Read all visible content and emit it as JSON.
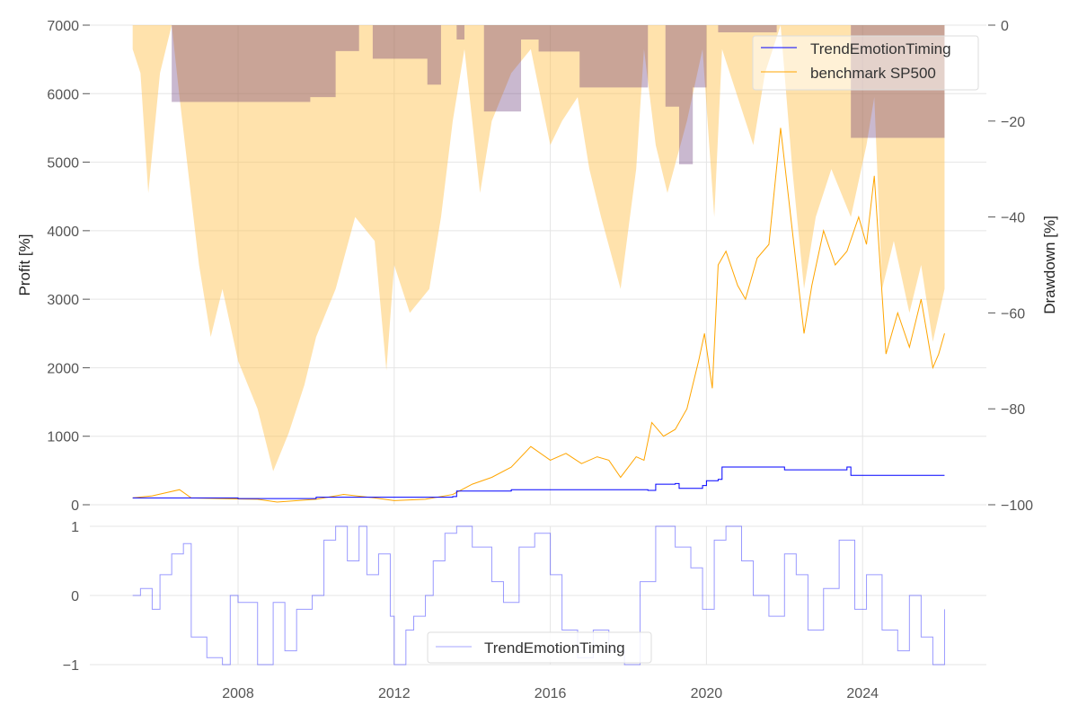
{
  "chart_data": [
    {
      "type": "line",
      "panel": "main",
      "xlabel": "",
      "ylabel": "Profit [%]",
      "ylabel_right": "Drawdown [%]",
      "ylim": [
        0,
        7000
      ],
      "ylim_right": [
        -100,
        0
      ],
      "xlim": [
        2004.4,
        2027.1
      ],
      "yticks": [
        0,
        1000,
        2000,
        3000,
        4000,
        5000,
        6000,
        7000
      ],
      "yticks_right": [
        "0",
        "−20",
        "−40",
        "−60",
        "−80",
        "−100"
      ],
      "yticks_right_values": [
        0,
        -20,
        -40,
        -60,
        -80,
        -100
      ],
      "legend": {
        "placement": "top-right",
        "entries": [
          "TrendEmotionTiming",
          "benchmark SP500"
        ]
      },
      "series": [
        {
          "name": "TrendEmotionTiming",
          "color": "#0000ff",
          "axis": "left",
          "x": [
            2005.3,
            2008,
            2010,
            2013.5,
            2013.6,
            2015,
            2018.5,
            2018.7,
            2019.2,
            2019.3,
            2019.9,
            2020.0,
            2020.3,
            2020.4,
            2021.9,
            2022.0,
            2023.6,
            2023.7,
            2026.1
          ],
          "y": [
            100,
            90,
            110,
            120,
            200,
            220,
            210,
            300,
            310,
            240,
            280,
            350,
            370,
            550,
            550,
            510,
            550,
            430,
            430
          ]
        },
        {
          "name": "benchmark SP500",
          "color": "#ffa500",
          "axis": "left",
          "x": [
            2005.3,
            2005.8,
            2006.5,
            2006.8,
            2007.5,
            2008.5,
            2009.0,
            2010.0,
            2010.7,
            2011.5,
            2012.0,
            2012.8,
            2013.5,
            2014.0,
            2014.5,
            2015.0,
            2015.5,
            2016.0,
            2016.4,
            2016.8,
            2017.2,
            2017.5,
            2017.8,
            2018.2,
            2018.4,
            2018.6,
            2018.9,
            2019.2,
            2019.5,
            2019.8,
            2019.95,
            2020.15,
            2020.3,
            2020.5,
            2020.8,
            2021.0,
            2021.3,
            2021.6,
            2021.9,
            2022.1,
            2022.3,
            2022.5,
            2022.7,
            2023.0,
            2023.3,
            2023.6,
            2023.9,
            2024.1,
            2024.3,
            2024.45,
            2024.6,
            2024.9,
            2025.2,
            2025.5,
            2025.8,
            2025.95,
            2026.1
          ],
          "y": [
            100,
            130,
            220,
            100,
            90,
            80,
            40,
            80,
            150,
            100,
            60,
            80,
            150,
            300,
            400,
            550,
            850,
            650,
            750,
            600,
            700,
            650,
            400,
            700,
            650,
            1200,
            1000,
            1100,
            1400,
            2100,
            2500,
            1700,
            3500,
            3700,
            3200,
            3000,
            3600,
            3800,
            5500,
            4500,
            3500,
            2500,
            3200,
            4000,
            3500,
            3700,
            4200,
            3800,
            4800,
            3500,
            2200,
            2800,
            2300,
            3000,
            2000,
            2200,
            2500
          ]
        }
      ],
      "drawdown_series": [
        {
          "name": "TrendEmotionTiming drawdown",
          "color": "#0000ff",
          "x": [
            2005.3,
            2006.3,
            2006.3,
            2009.85,
            2009.85,
            2010.5,
            2010.5,
            2011.1,
            2011.1,
            2011.45,
            2011.45,
            2012.85,
            2012.85,
            2013.2,
            2013.2,
            2013.6,
            2013.6,
            2013.8,
            2013.8,
            2014.3,
            2014.3,
            2015.25,
            2015.25,
            2015.7,
            2015.7,
            2016.75,
            2016.75,
            2018.5,
            2018.5,
            2018.95,
            2018.95,
            2019.3,
            2019.3,
            2019.65,
            2019.65,
            2020.0,
            2020.0,
            2020.3,
            2020.3,
            2021.8,
            2021.8,
            2023.7,
            2023.7,
            2026.1
          ],
          "y": [
            0,
            0,
            -16,
            -16,
            -15,
            -15,
            -5.4,
            -5.4,
            0,
            0,
            -7,
            -7,
            -12.4,
            -12.4,
            0,
            0,
            -3,
            -3,
            0,
            0,
            -18,
            -18,
            -3,
            -3,
            -5.5,
            -5.5,
            -13,
            -13,
            0,
            0,
            -17,
            -17,
            -29,
            -29,
            -13,
            -13,
            0,
            0,
            -1.5,
            -1.5,
            0,
            0,
            -23.5,
            -23.5
          ]
        },
        {
          "name": "benchmark SP500 drawdown",
          "color": "#ffa500",
          "x": [
            2005.3,
            2005.5,
            2005.7,
            2006.0,
            2006.3,
            2006.5,
            2007.0,
            2007.3,
            2007.6,
            2008.0,
            2008.5,
            2008.9,
            2009.3,
            2009.7,
            2010.0,
            2010.5,
            2011.0,
            2011.5,
            2011.8,
            2012.0,
            2012.4,
            2012.9,
            2013.2,
            2013.5,
            2013.8,
            2014.2,
            2014.5,
            2015.0,
            2015.5,
            2016.0,
            2016.3,
            2016.7,
            2017.0,
            2017.3,
            2017.8,
            2018.2,
            2018.4,
            2018.7,
            2019.0,
            2019.5,
            2019.9,
            2020.2,
            2020.4,
            2020.8,
            2021.2,
            2021.5,
            2021.9,
            2022.2,
            2022.5,
            2022.8,
            2023.2,
            2023.7,
            2024.1,
            2024.3,
            2024.5,
            2024.8,
            2025.2,
            2025.5,
            2025.8,
            2026.1
          ],
          "y": [
            -5,
            -10,
            -35,
            -10,
            0,
            -15,
            -50,
            -65,
            -55,
            -70,
            -80,
            -93,
            -85,
            -75,
            -65,
            -55,
            -40,
            -45,
            -72,
            -50,
            -60,
            -55,
            -40,
            -20,
            -5,
            -35,
            -20,
            -10,
            -5,
            -25,
            -20,
            -15,
            -30,
            -40,
            -55,
            -30,
            -5,
            -25,
            -35,
            -20,
            -5,
            -40,
            -5,
            -15,
            -25,
            -10,
            0,
            -30,
            -55,
            -40,
            -30,
            -40,
            -25,
            -15,
            -55,
            -45,
            -60,
            -50,
            -66,
            -55
          ]
        }
      ]
    },
    {
      "type": "line",
      "panel": "signal",
      "xlabel": "",
      "ylabel": "",
      "ylim": [
        -1,
        1
      ],
      "yticks": [
        "−1",
        "0",
        "1"
      ],
      "yticks_values": [
        -1,
        0,
        1
      ],
      "xticks": [
        "2008",
        "2012",
        "2016",
        "2020",
        "2024"
      ],
      "xticks_values": [
        2008,
        2012,
        2016,
        2020,
        2024
      ],
      "legend": {
        "placement": "bottom-center",
        "entries": [
          "TrendEmotionTiming"
        ]
      },
      "series": [
        {
          "name": "TrendEmotionTiming",
          "color": "#0000ff",
          "x": [
            2005.3,
            2005.5,
            2005.8,
            2006.0,
            2006.3,
            2006.6,
            2006.8,
            2007.2,
            2007.6,
            2007.8,
            2008.0,
            2008.5,
            2008.9,
            2009.2,
            2009.5,
            2009.9,
            2010.2,
            2010.5,
            2010.8,
            2011.1,
            2011.3,
            2011.6,
            2011.9,
            2012.0,
            2012.3,
            2012.5,
            2012.8,
            2013.0,
            2013.3,
            2013.6,
            2014.0,
            2014.5,
            2014.8,
            2015.2,
            2015.6,
            2016.0,
            2016.3,
            2016.7,
            2017.1,
            2017.5,
            2017.9,
            2018.3,
            2018.7,
            2019.2,
            2019.6,
            2019.9,
            2020.2,
            2020.5,
            2020.9,
            2021.2,
            2021.6,
            2022.0,
            2022.3,
            2022.6,
            2023.0,
            2023.4,
            2023.8,
            2024.1,
            2024.5,
            2024.9,
            2025.2,
            2025.5,
            2025.8,
            2026.1
          ],
          "y": [
            0,
            0.1,
            -0.2,
            0.3,
            0.6,
            0.75,
            -0.6,
            -0.9,
            -1,
            0,
            -0.1,
            -1,
            -0.1,
            -0.8,
            -0.2,
            0,
            0.8,
            1,
            0.5,
            1,
            0.3,
            0.6,
            -0.3,
            -1,
            -0.5,
            -0.3,
            0,
            0.5,
            0.9,
            1,
            0.7,
            0.2,
            -0.1,
            0.7,
            0.9,
            0.3,
            -0.5,
            -0.9,
            -0.5,
            -0.8,
            -1,
            0.2,
            1,
            0.7,
            0.4,
            -0.2,
            0.8,
            1,
            0.5,
            0,
            -0.3,
            0.6,
            0.3,
            -0.5,
            0.1,
            0.8,
            -0.2,
            0.3,
            -0.5,
            -0.8,
            0,
            -0.6,
            -1,
            -0.2
          ]
        }
      ]
    }
  ]
}
